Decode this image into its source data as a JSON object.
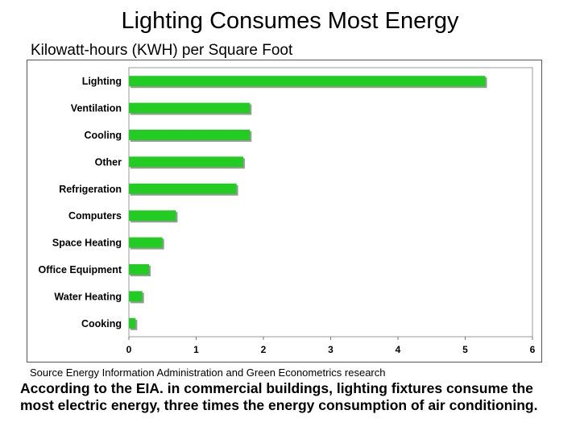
{
  "title": "Lighting Consumes Most Energy",
  "subtitle": "Kilowatt-hours (KWH) per Square Foot",
  "source": "Source  Energy Information Administration and Green Econometrics research",
  "caption": "According to the EIA. in commercial buildings, lighting fixtures consume the most electric energy, three times the energy consumption of air conditioning.",
  "chart_data": {
    "type": "bar",
    "orientation": "horizontal",
    "categories": [
      "Lighting",
      "Ventilation",
      "Cooling",
      "Other",
      "Refrigeration",
      "Computers",
      "Space Heating",
      "Office Equipment",
      "Water Heating",
      "Cooking"
    ],
    "values": [
      5.3,
      1.8,
      1.8,
      1.7,
      1.6,
      0.7,
      0.5,
      0.3,
      0.2,
      0.1
    ],
    "xlim": [
      0,
      6
    ],
    "xticks": [
      "0",
      "1",
      "2",
      "3",
      "4",
      "5",
      "6"
    ],
    "grid": false,
    "bar_color": "#22cc22",
    "bar_shadow_color": "#9a9a9a"
  }
}
